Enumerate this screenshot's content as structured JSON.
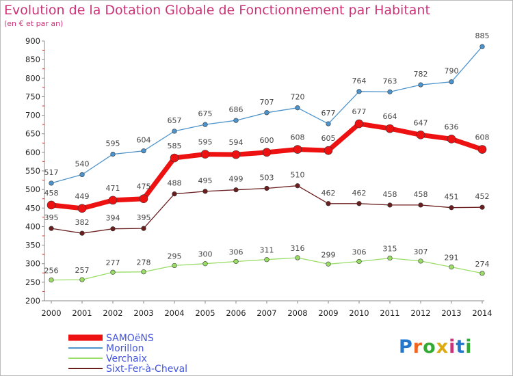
{
  "header": {
    "title": "Evolution de la Dotation Globale de Fonctionnement par Habitant",
    "subtitle": "(en € et par an)"
  },
  "logo": {
    "text": "Proxiti",
    "colors": [
      "#2277cc",
      "#ee6622",
      "#33aa33",
      "#ddaa11",
      "#cc3377",
      "#2277cc",
      "#33aa33"
    ]
  },
  "chart_data": {
    "type": "line",
    "title": "Evolution de la Dotation Globale de Fonctionnement par Habitant",
    "subtitle": "(en € et par an)",
    "xlabel": "",
    "ylabel": "",
    "x": [
      "2000",
      "2001",
      "2002",
      "2003",
      "2004",
      "2005",
      "2006",
      "2007",
      "2008",
      "2009",
      "2010",
      "2011",
      "2012",
      "2013",
      "2014"
    ],
    "ylim": [
      200,
      900
    ],
    "yticks": [
      200,
      250,
      300,
      350,
      400,
      450,
      500,
      550,
      600,
      650,
      700,
      750,
      800,
      850,
      900
    ],
    "grid": false,
    "legend": "bottom-left",
    "series": [
      {
        "name": "Morillon",
        "color": "#4d94cc",
        "values": [
          517,
          540,
          595,
          604,
          657,
          675,
          686,
          707,
          720,
          677,
          764,
          763,
          782,
          790,
          885
        ]
      },
      {
        "name": "Sixt-Fer-à-Cheval",
        "color": "#6b1e1e",
        "values": [
          395,
          382,
          394,
          395,
          488,
          495,
          499,
          503,
          510,
          462,
          462,
          458,
          458,
          451,
          452
        ]
      },
      {
        "name": "Verchaix",
        "color": "#99dd66",
        "values": [
          256,
          257,
          277,
          278,
          295,
          300,
          306,
          311,
          316,
          299,
          306,
          315,
          307,
          291,
          274
        ]
      },
      {
        "name": "SAMOëNS",
        "color": "#ee1111",
        "values": [
          458,
          449,
          471,
          475,
          585,
          595,
          594,
          600,
          608,
          605,
          677,
          664,
          647,
          636,
          608
        ]
      }
    ],
    "legend_order": [
      "SAMOëNS",
      "Morillon",
      "Verchaix",
      "Sixt-Fer-à-Cheval"
    ]
  }
}
